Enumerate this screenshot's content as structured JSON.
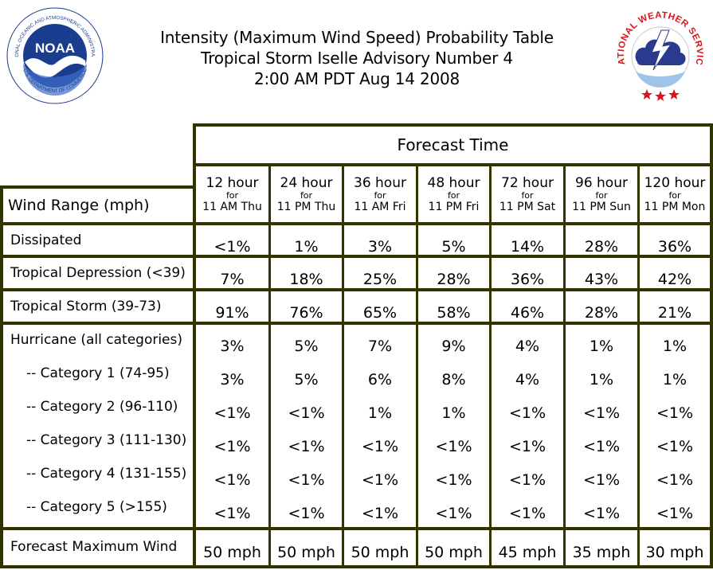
{
  "header": {
    "title_line1": "Intensity (Maximum Wind Speed) Probability Table",
    "title_line2": "Tropical Storm Iselle Advisory Number 4",
    "title_line3": "2:00 AM PDT Aug 14 2008"
  },
  "logos": {
    "noaa_left_text": "NATIONAL OCEANIC AND ATMOSPHERIC ADMINISTRATION",
    "noaa_bottom_text": "U.S. DEPARTMENT OF COMMERCE",
    "noaa_center": "NOAA",
    "nws_text": "NATIONAL WEATHER SERVICE"
  },
  "table": {
    "forecast_time_label": "Forecast Time",
    "wind_range_label": "Wind Range (mph)",
    "for_label": "for",
    "columns": [
      {
        "hour": "12 hour",
        "when": "11 AM Thu"
      },
      {
        "hour": "24 hour",
        "when": "11 PM Thu"
      },
      {
        "hour": "36 hour",
        "when": "11 AM Fri"
      },
      {
        "hour": "48 hour",
        "when": "11 PM Fri"
      },
      {
        "hour": "72 hour",
        "when": "11 PM Sat"
      },
      {
        "hour": "96 hour",
        "when": "11 PM Sun"
      },
      {
        "hour": "120 hour",
        "when": "11 PM Mon"
      }
    ],
    "rows": [
      {
        "label": "Dissipated",
        "values": [
          "<1%",
          "1%",
          "3%",
          "5%",
          "14%",
          "28%",
          "36%"
        ]
      },
      {
        "label": "Tropical Depression (<39)",
        "values": [
          "7%",
          "18%",
          "25%",
          "28%",
          "36%",
          "43%",
          "42%"
        ]
      },
      {
        "label": "Tropical Storm (39-73)",
        "values": [
          "91%",
          "76%",
          "65%",
          "58%",
          "46%",
          "28%",
          "21%"
        ]
      },
      {
        "label": "Hurricane (all categories)",
        "values": [
          "3%",
          "5%",
          "7%",
          "9%",
          "4%",
          "1%",
          "1%"
        ]
      },
      {
        "label": "-- Category 1 (74-95)",
        "values": [
          "3%",
          "5%",
          "6%",
          "8%",
          "4%",
          "1%",
          "1%"
        ]
      },
      {
        "label": "-- Category 2 (96-110)",
        "values": [
          "<1%",
          "<1%",
          "1%",
          "1%",
          "<1%",
          "<1%",
          "<1%"
        ]
      },
      {
        "label": "-- Category 3 (111-130)",
        "values": [
          "<1%",
          "<1%",
          "<1%",
          "<1%",
          "<1%",
          "<1%",
          "<1%"
        ]
      },
      {
        "label": "-- Category 4 (131-155)",
        "values": [
          "<1%",
          "<1%",
          "<1%",
          "<1%",
          "<1%",
          "<1%",
          "<1%"
        ]
      },
      {
        "label": "-- Category 5 (>155)",
        "values": [
          "<1%",
          "<1%",
          "<1%",
          "<1%",
          "<1%",
          "<1%",
          "<1%"
        ]
      }
    ],
    "footer_row": {
      "label": "Forecast Maximum Wind",
      "values": [
        "50 mph",
        "50 mph",
        "50 mph",
        "50 mph",
        "45 mph",
        "35 mph",
        "30 mph"
      ]
    }
  },
  "colors": {
    "border": "#333300",
    "noaa_blue": "#1a3d8f",
    "nws_red": "#d9141b",
    "nws_cloud": "#2a3a8c"
  }
}
